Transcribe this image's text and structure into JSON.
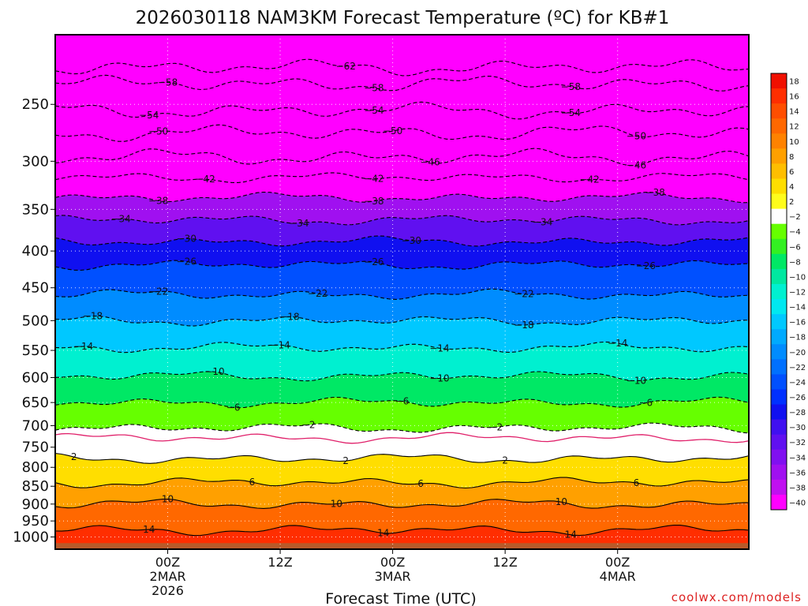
{
  "chart_data": {
    "type": "heatmap",
    "title": "2026030118 NAM3KM Forecast Temperature (ºC) for KB#1",
    "xlabel": "Forecast Time (UTC)",
    "ylabel": "",
    "y_ticks": [
      250,
      300,
      350,
      400,
      450,
      500,
      550,
      600,
      650,
      700,
      750,
      800,
      850,
      900,
      950,
      1000
    ],
    "y_tick_labels": [
      "250",
      "300",
      "350",
      "400",
      "450",
      "500",
      "550",
      "600",
      "650",
      "700",
      "750",
      "800",
      "850",
      "900",
      "950",
      "1000"
    ],
    "ylim_hpa": [
      1040,
      200
    ],
    "x_range_hours": [
      -12,
      62
    ],
    "x_ticks": [
      {
        "hour": 0,
        "lines": [
          "00Z",
          "2MAR",
          "2026"
        ]
      },
      {
        "hour": 12,
        "lines": [
          "12Z"
        ]
      },
      {
        "hour": 24,
        "lines": [
          "00Z",
          "3MAR"
        ]
      },
      {
        "hour": 36,
        "lines": [
          "12Z"
        ]
      },
      {
        "hour": 48,
        "lines": [
          "00Z",
          "4MAR"
        ]
      }
    ],
    "colorbar": {
      "levels": [
        18,
        16,
        14,
        12,
        10,
        8,
        6,
        4,
        2,
        -2,
        -4,
        -6,
        -8,
        -10,
        -12,
        -14,
        -16,
        -18,
        -20,
        -22,
        -24,
        -26,
        -28,
        -30,
        -32,
        -34,
        -36,
        -38,
        -40
      ],
      "labels": [
        "18",
        "16",
        "14",
        "12",
        "10",
        "8",
        "6",
        "4",
        "2",
        "−2",
        "−4",
        "−6",
        "−8",
        "−10",
        "−12",
        "−14",
        "−16",
        "−18",
        "−20",
        "−22",
        "−24",
        "−26",
        "−28",
        "−30",
        "−32",
        "−34",
        "−36",
        "−38",
        "−40"
      ],
      "colors": [
        "#f01000",
        "#ff2e00",
        "#ff4e00",
        "#ff6800",
        "#ff8200",
        "#ffa000",
        "#ffbe00",
        "#ffde00",
        "#fffc1c",
        "#ffffff",
        "#66ff00",
        "#33f022",
        "#00e865",
        "#00e8a0",
        "#00f0d0",
        "#00e8f0",
        "#00c8ff",
        "#00aaff",
        "#008cff",
        "#0070ff",
        "#0050ff",
        "#0030ff",
        "#1010f0",
        "#4010f0",
        "#6010f0",
        "#8010f0",
        "#a010f0",
        "#c010f0",
        "#ff00ff"
      ]
    },
    "isotherms": [
      {
        "value": -62,
        "label": "−62",
        "p": 222,
        "dashed": true,
        "label_hours": [
          19
        ]
      },
      {
        "value": -58,
        "label": "−58",
        "p": 234,
        "dashed": true,
        "label_hours": [
          0,
          22,
          43
        ]
      },
      {
        "value": -54,
        "label": "−54",
        "p": 255,
        "dashed": true,
        "label_hours": [
          -2,
          22,
          43
        ]
      },
      {
        "value": -50,
        "label": "−50",
        "p": 274,
        "dashed": true,
        "label_hours": [
          -1,
          24,
          50
        ]
      },
      {
        "value": -46,
        "label": "−46",
        "p": 296,
        "dashed": true,
        "label_hours": [
          28,
          50
        ]
      },
      {
        "value": -42,
        "label": "−42",
        "p": 316,
        "dashed": true,
        "label_hours": [
          4,
          22,
          45
        ]
      },
      {
        "value": -38,
        "label": "−38",
        "p": 337,
        "dashed": true,
        "label_hours": [
          -1,
          22,
          52
        ]
      },
      {
        "value": -34,
        "label": "−34",
        "p": 362,
        "dashed": true,
        "label_hours": [
          -5,
          14,
          40
        ]
      },
      {
        "value": -30,
        "label": "−30",
        "p": 388,
        "dashed": true,
        "label_hours": [
          2,
          26
        ]
      },
      {
        "value": -26,
        "label": "−26",
        "p": 418,
        "dashed": true,
        "label_hours": [
          2,
          22,
          51
        ]
      },
      {
        "value": -22,
        "label": "−22",
        "p": 460,
        "dashed": true,
        "label_hours": [
          -1,
          16,
          38
        ]
      },
      {
        "value": -18,
        "label": "−18",
        "p": 500,
        "dashed": true,
        "label_hours": [
          -8,
          13,
          38
        ]
      },
      {
        "value": -14,
        "label": "−14",
        "p": 545,
        "dashed": true,
        "label_hours": [
          -9,
          12,
          29,
          48
        ]
      },
      {
        "value": -10,
        "label": "−10",
        "p": 597,
        "dashed": true,
        "label_hours": [
          5,
          29,
          50
        ]
      },
      {
        "value": -6,
        "label": "−6",
        "p": 650,
        "dashed": true,
        "label_hours": [
          7,
          25,
          51
        ]
      },
      {
        "value": -2,
        "label": "−2",
        "p": 705,
        "dashed": true,
        "label_hours": [
          15,
          35
        ]
      },
      {
        "value": 0,
        "label": "",
        "p": 728,
        "dashed": false,
        "magenta": true,
        "label_hours": []
      },
      {
        "value": 2,
        "label": "2",
        "p": 778,
        "dashed": false,
        "label_hours": [
          -10,
          19,
          36
        ]
      },
      {
        "value": 6,
        "label": "6",
        "p": 840,
        "dashed": false,
        "label_hours": [
          9,
          27,
          50
        ]
      },
      {
        "value": 10,
        "label": "10",
        "p": 900,
        "dashed": false,
        "label_hours": [
          0,
          18,
          42
        ]
      },
      {
        "value": 14,
        "label": "14",
        "p": 978,
        "dashed": false,
        "label_hours": [
          -2,
          23,
          43
        ]
      }
    ]
  },
  "credit": "coolwx.com/models"
}
